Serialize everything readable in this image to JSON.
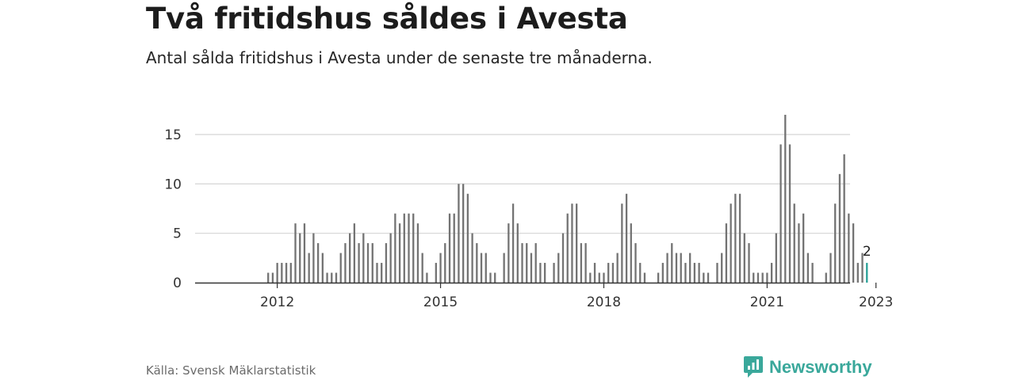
{
  "header": {
    "title": "Två fritidshus såldes i Avesta",
    "subtitle": "Antal sålda fritidshus i Avesta under de senaste tre månaderna."
  },
  "footer": {
    "source": "Källa: Svensk Mäklarstatistik",
    "brand": "Newsworthy"
  },
  "colors": {
    "bar": "#737373",
    "highlight": "#2aa198",
    "grid": "#d9d9d9",
    "axis": "#333333",
    "brand": "#3aa89b"
  },
  "chart_data": {
    "type": "bar",
    "x_start": "2011-01",
    "x_end": "2022-12",
    "xticks": [
      "2012",
      "2015",
      "2018",
      "2021",
      "2023"
    ],
    "yticks": [
      0,
      5,
      10,
      15
    ],
    "ylim": [
      0,
      17
    ],
    "grid": true,
    "highlight_label": "2",
    "values": [
      0,
      0,
      0,
      0,
      0,
      0,
      0,
      0,
      0,
      0,
      1,
      1,
      2,
      2,
      2,
      2,
      6,
      5,
      6,
      3,
      5,
      4,
      3,
      1,
      1,
      1,
      3,
      4,
      5,
      6,
      4,
      5,
      4,
      4,
      2,
      2,
      4,
      5,
      7,
      6,
      7,
      7,
      7,
      6,
      3,
      1,
      0,
      2,
      3,
      4,
      7,
      7,
      10,
      10,
      9,
      5,
      4,
      3,
      3,
      1,
      1,
      0,
      3,
      6,
      8,
      6,
      4,
      4,
      3,
      4,
      2,
      2,
      0,
      2,
      3,
      5,
      7,
      8,
      8,
      4,
      4,
      1,
      2,
      1,
      1,
      2,
      2,
      3,
      8,
      9,
      6,
      4,
      2,
      1,
      0,
      0,
      1,
      2,
      3,
      4,
      3,
      3,
      2,
      3,
      2,
      2,
      1,
      1,
      0,
      2,
      3,
      6,
      8,
      9,
      9,
      5,
      4,
      1,
      1,
      1,
      1,
      2,
      5,
      14,
      17,
      14,
      8,
      6,
      7,
      3,
      2,
      0,
      0,
      1,
      3,
      8,
      11,
      13,
      7,
      6,
      2,
      3,
      2
    ]
  }
}
